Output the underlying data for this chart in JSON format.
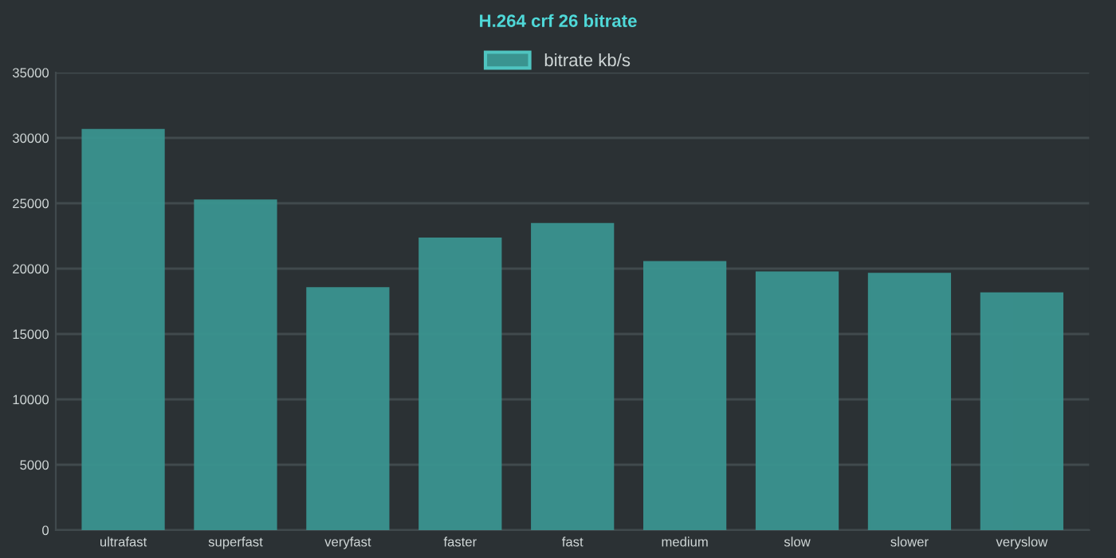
{
  "chart_data": {
    "type": "bar",
    "title": "H.264 crf 26 bitrate",
    "categories": [
      "ultrafast",
      "superfast",
      "veryfast",
      "faster",
      "fast",
      "medium",
      "slow",
      "slower",
      "veryslow"
    ],
    "series": [
      {
        "name": "bitrate kb/s",
        "color": "#3a9490",
        "values": [
          30600,
          25200,
          18500,
          22300,
          23400,
          20500,
          19700,
          19600,
          18100
        ]
      }
    ],
    "ylim": [
      0,
      35000
    ],
    "yticks": [
      0,
      5000,
      10000,
      15000,
      20000,
      25000,
      30000,
      35000
    ],
    "grid": "y",
    "legend": "top"
  }
}
